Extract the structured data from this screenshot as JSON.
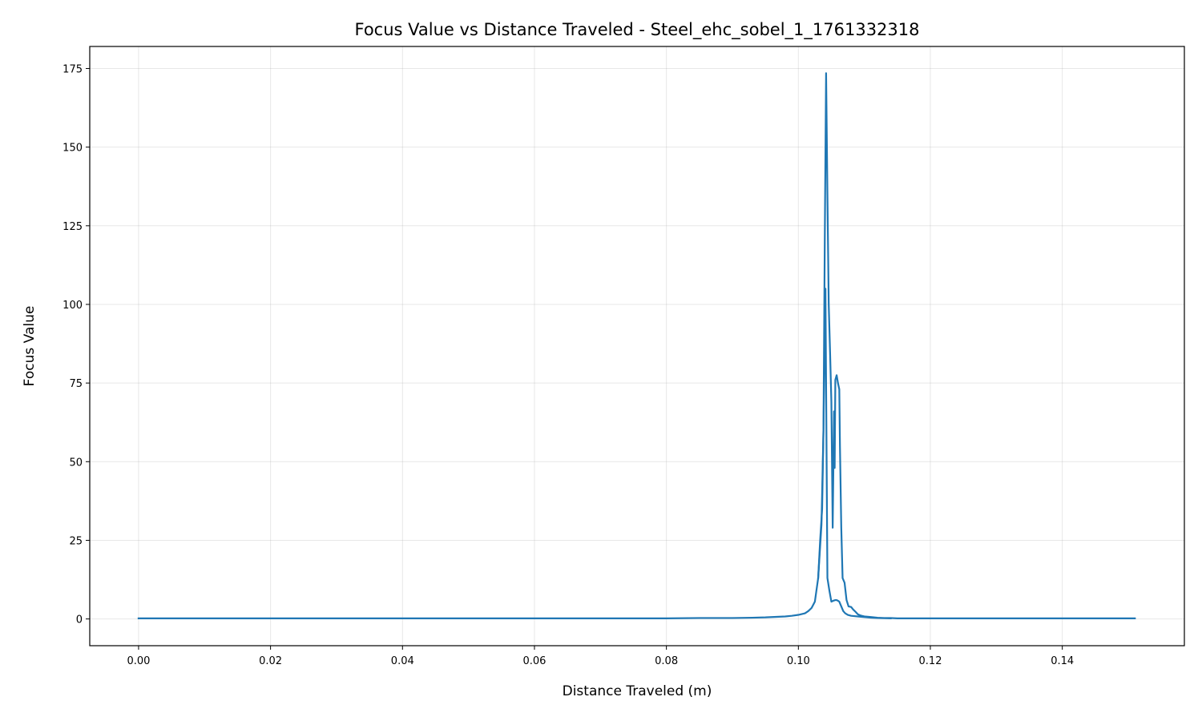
{
  "chart_data": {
    "type": "line",
    "title": "Focus Value vs Distance Traveled - Steel_ehc_sobel_1_1761332318",
    "xlabel": "Distance Traveled (m)",
    "ylabel": "Focus Value",
    "xlim": [
      -0.0074,
      0.1585
    ],
    "ylim": [
      -8.5,
      182
    ],
    "xticks": [
      0.0,
      0.02,
      0.04,
      0.06,
      0.08,
      0.1,
      0.12,
      0.14
    ],
    "xtick_labels": [
      "0.00",
      "0.02",
      "0.04",
      "0.06",
      "0.08",
      "0.10",
      "0.12",
      "0.14"
    ],
    "yticks": [
      0,
      25,
      50,
      75,
      100,
      125,
      150,
      175
    ],
    "ytick_labels": [
      "0",
      "25",
      "50",
      "75",
      "100",
      "125",
      "150",
      "175"
    ],
    "grid": true,
    "series": [
      {
        "color": "#1f77b4",
        "x": [
          0.0,
          0.02,
          0.04,
          0.06,
          0.08,
          0.085,
          0.09,
          0.093,
          0.095,
          0.097,
          0.098,
          0.099,
          0.1,
          0.101,
          0.1015,
          0.102,
          0.1025,
          0.103,
          0.1033,
          0.1036,
          0.1038,
          0.104,
          0.1042,
          0.1044,
          0.1046,
          0.1048,
          0.105,
          0.1052,
          0.1054,
          0.1055,
          0.1056,
          0.1058,
          0.106,
          0.1062,
          0.1063,
          0.1065,
          0.1067,
          0.107,
          0.1073,
          0.1076,
          0.108,
          0.1083,
          0.1087,
          0.109,
          0.1093,
          0.1096,
          0.11,
          0.111,
          0.112,
          0.113,
          0.114,
          0.115,
          0.117,
          0.12,
          0.125,
          0.13,
          0.14,
          0.151
        ],
        "y": [
          0.2,
          0.2,
          0.2,
          0.2,
          0.2,
          0.3,
          0.3,
          0.4,
          0.5,
          0.7,
          0.8,
          1.0,
          1.3,
          1.8,
          2.5,
          3.5,
          5.5,
          13.0,
          25.0,
          35.0,
          60.0,
          120.0,
          173.5,
          135.0,
          100.0,
          85.0,
          69.0,
          29.0,
          66.0,
          48.0,
          76.0,
          77.5,
          75.0,
          73.0,
          55.0,
          29.0,
          13.0,
          11.5,
          6.0,
          4.0,
          3.8,
          3.0,
          2.2,
          1.5,
          1.2,
          1.0,
          0.8,
          0.6,
          0.4,
          0.3,
          0.3,
          0.2,
          0.2,
          0.2,
          0.2,
          0.2,
          0.2,
          0.2
        ]
      },
      {
        "color": "#1f77b4",
        "x": [
          0.103,
          0.1035,
          0.1038,
          0.1041,
          0.1044,
          0.1047,
          0.105,
          0.1053,
          0.1056,
          0.1058,
          0.106,
          0.1062,
          0.1065,
          0.1068,
          0.1071,
          0.1075,
          0.108,
          0.109,
          0.11,
          0.111,
          0.112,
          0.114
        ],
        "y": [
          13.0,
          30.0,
          60.0,
          105.0,
          13.0,
          9.0,
          5.5,
          5.8,
          6.0,
          6.0,
          5.8,
          5.5,
          4.0,
          2.5,
          1.8,
          1.3,
          1.0,
          0.8,
          0.6,
          0.4,
          0.3,
          0.2
        ]
      }
    ]
  }
}
